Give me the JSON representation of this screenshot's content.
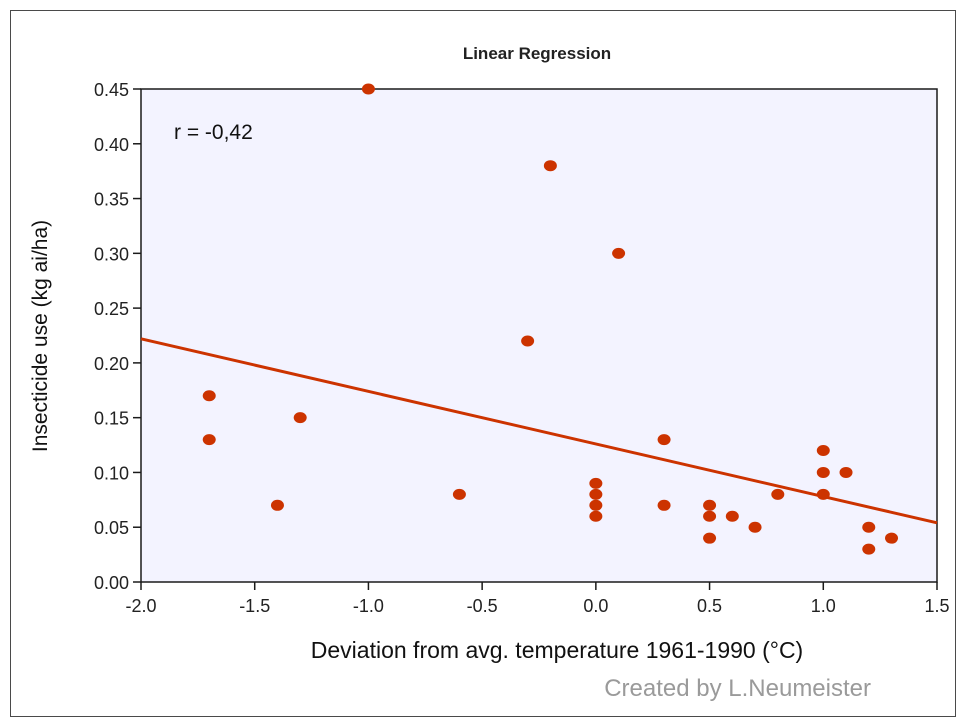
{
  "chart_data": {
    "type": "scatter",
    "title": "Linear Regression",
    "xlabel": "Deviation from avg. temperature 1961-1990 (°C)",
    "ylabel": "Insecticide use (kg ai/ha)",
    "xlim": [
      -2.0,
      1.5
    ],
    "ylim": [
      0.0,
      0.45
    ],
    "xticks": [
      "-2.0",
      "-1.5",
      "-1.0",
      "-0.5",
      "0.0",
      "0.5",
      "1.0",
      "1.5"
    ],
    "yticks": [
      "0.00",
      "0.05",
      "0.10",
      "0.15",
      "0.20",
      "0.25",
      "0.30",
      "0.35",
      "0.40",
      "0.45"
    ],
    "grid": false,
    "annotation": "r = -0,42",
    "point_color": "#cc3300",
    "line_color": "#cc3300",
    "plot_background": "#f3f3ff",
    "points": [
      {
        "x": -1.7,
        "y": 0.17
      },
      {
        "x": -1.7,
        "y": 0.13
      },
      {
        "x": -1.4,
        "y": 0.07
      },
      {
        "x": -1.3,
        "y": 0.15
      },
      {
        "x": -1.0,
        "y": 0.45
      },
      {
        "x": -0.6,
        "y": 0.08
      },
      {
        "x": -0.3,
        "y": 0.22
      },
      {
        "x": -0.2,
        "y": 0.38
      },
      {
        "x": 0.0,
        "y": 0.09
      },
      {
        "x": 0.0,
        "y": 0.08
      },
      {
        "x": 0.0,
        "y": 0.07
      },
      {
        "x": 0.0,
        "y": 0.06
      },
      {
        "x": 0.1,
        "y": 0.3
      },
      {
        "x": 0.3,
        "y": 0.13
      },
      {
        "x": 0.3,
        "y": 0.07
      },
      {
        "x": 0.5,
        "y": 0.07
      },
      {
        "x": 0.5,
        "y": 0.06
      },
      {
        "x": 0.5,
        "y": 0.04
      },
      {
        "x": 0.6,
        "y": 0.06
      },
      {
        "x": 0.7,
        "y": 0.05
      },
      {
        "x": 0.8,
        "y": 0.08
      },
      {
        "x": 1.0,
        "y": 0.12
      },
      {
        "x": 1.0,
        "y": 0.1
      },
      {
        "x": 1.0,
        "y": 0.08
      },
      {
        "x": 1.1,
        "y": 0.1
      },
      {
        "x": 1.2,
        "y": 0.05
      },
      {
        "x": 1.2,
        "y": 0.03
      },
      {
        "x": 1.3,
        "y": 0.04
      }
    ],
    "regression_line": [
      {
        "x": -2.0,
        "y": 0.222
      },
      {
        "x": 1.5,
        "y": 0.054
      }
    ]
  },
  "credit": "Created by L.Neumeister"
}
